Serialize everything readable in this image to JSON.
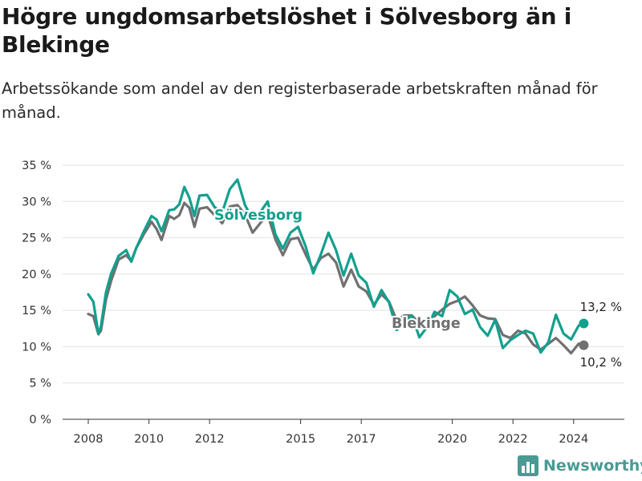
{
  "title": "Högre ungdomsarbetslöshet i Sölvesborg än i Blekinge",
  "subtitle": "Arbetssökande som andel av den registerbaserade arbetskraften månad för månad.",
  "brand": {
    "name": "Newsworthy",
    "icon": "bar-chart-logo-icon",
    "color": "#4a9a94"
  },
  "chart_data": {
    "type": "line",
    "x_ticks": [
      "2008",
      "2010",
      "2012",
      "2015",
      "2017",
      "2020",
      "2022",
      "2024"
    ],
    "y_ticks": [
      "0 %",
      "5 %",
      "10 %",
      "15 %",
      "20 %",
      "25 %",
      "30 %",
      "35 %"
    ],
    "ylim": [
      0,
      35
    ],
    "grid": true,
    "legend": "inline labels",
    "series": [
      {
        "name": "Sölvesborg",
        "color": "#12a08e",
        "end_label": "13,2 %",
        "points": [
          [
            "2008-01",
            17.2
          ],
          [
            "2008-03",
            16.2
          ],
          [
            "2008-05",
            11.8
          ],
          [
            "2008-06",
            12.8
          ],
          [
            "2008-08",
            17.5
          ],
          [
            "2008-10",
            20.0
          ],
          [
            "2009-01",
            22.5
          ],
          [
            "2009-04",
            23.3
          ],
          [
            "2009-06",
            21.7
          ],
          [
            "2009-08",
            23.6
          ],
          [
            "2009-11",
            25.9
          ],
          [
            "2010-02",
            28.0
          ],
          [
            "2010-04",
            27.5
          ],
          [
            "2010-06",
            25.9
          ],
          [
            "2010-09",
            28.8
          ],
          [
            "2010-11",
            28.9
          ],
          [
            "2011-01",
            29.6
          ],
          [
            "2011-03",
            32.0
          ],
          [
            "2011-05",
            30.5
          ],
          [
            "2011-07",
            28.0
          ],
          [
            "2011-09",
            30.8
          ],
          [
            "2011-12",
            30.9
          ],
          [
            "2012-03",
            29.2
          ],
          [
            "2012-06",
            28.5
          ],
          [
            "2012-09",
            31.7
          ],
          [
            "2012-12",
            33.0
          ],
          [
            "2013-03",
            29.5
          ],
          [
            "2013-06",
            27.5
          ],
          [
            "2013-09",
            28.5
          ],
          [
            "2013-12",
            30.0
          ],
          [
            "2014-03",
            25.5
          ],
          [
            "2014-06",
            23.5
          ],
          [
            "2014-09",
            25.7
          ],
          [
            "2014-12",
            26.5
          ],
          [
            "2015-03",
            23.8
          ],
          [
            "2015-06",
            20.1
          ],
          [
            "2015-09",
            22.7
          ],
          [
            "2015-12",
            25.7
          ],
          [
            "2016-03",
            23.3
          ],
          [
            "2016-06",
            19.8
          ],
          [
            "2016-09",
            22.8
          ],
          [
            "2016-12",
            19.8
          ],
          [
            "2017-03",
            18.8
          ],
          [
            "2017-06",
            15.5
          ],
          [
            "2017-09",
            17.8
          ],
          [
            "2017-12",
            16.1
          ],
          [
            "2018-03",
            12.3
          ],
          [
            "2018-06",
            13.4
          ],
          [
            "2018-09",
            14.3
          ],
          [
            "2018-12",
            11.3
          ],
          [
            "2019-03",
            12.7
          ],
          [
            "2019-06",
            14.8
          ],
          [
            "2019-09",
            14.2
          ],
          [
            "2019-12",
            17.8
          ],
          [
            "2020-03",
            16.9
          ],
          [
            "2020-06",
            14.5
          ],
          [
            "2020-09",
            15.1
          ],
          [
            "2020-12",
            12.7
          ],
          [
            "2021-03",
            11.5
          ],
          [
            "2021-06",
            13.7
          ],
          [
            "2021-09",
            9.8
          ],
          [
            "2021-12",
            10.9
          ],
          [
            "2022-03",
            11.6
          ],
          [
            "2022-06",
            12.2
          ],
          [
            "2022-09",
            11.8
          ],
          [
            "2022-12",
            9.2
          ],
          [
            "2023-03",
            10.6
          ],
          [
            "2023-06",
            14.4
          ],
          [
            "2023-09",
            11.8
          ],
          [
            "2023-12",
            11.0
          ],
          [
            "2024-03",
            12.9
          ],
          [
            "2024-05",
            13.2
          ]
        ]
      },
      {
        "name": "Blekinge",
        "color": "#707070",
        "end_label": "10,2 %",
        "points": [
          [
            "2008-01",
            14.5
          ],
          [
            "2008-03",
            14.2
          ],
          [
            "2008-05",
            11.7
          ],
          [
            "2008-06",
            12.2
          ],
          [
            "2008-08",
            16.5
          ],
          [
            "2008-10",
            19.0
          ],
          [
            "2009-01",
            22.0
          ],
          [
            "2009-04",
            22.6
          ],
          [
            "2009-06",
            21.8
          ],
          [
            "2009-08",
            23.6
          ],
          [
            "2009-11",
            25.5
          ],
          [
            "2010-02",
            27.2
          ],
          [
            "2010-04",
            26.2
          ],
          [
            "2010-06",
            24.7
          ],
          [
            "2010-09",
            28.0
          ],
          [
            "2010-11",
            27.6
          ],
          [
            "2011-01",
            28.1
          ],
          [
            "2011-03",
            29.8
          ],
          [
            "2011-05",
            29.1
          ],
          [
            "2011-07",
            26.5
          ],
          [
            "2011-09",
            29.0
          ],
          [
            "2011-12",
            29.2
          ],
          [
            "2012-03",
            28.1
          ],
          [
            "2012-06",
            27.0
          ],
          [
            "2012-09",
            29.3
          ],
          [
            "2012-12",
            29.5
          ],
          [
            "2013-03",
            28.2
          ],
          [
            "2013-06",
            25.7
          ],
          [
            "2013-09",
            27.0
          ],
          [
            "2013-12",
            28.2
          ],
          [
            "2014-03",
            24.8
          ],
          [
            "2014-06",
            22.6
          ],
          [
            "2014-09",
            24.8
          ],
          [
            "2014-12",
            25.0
          ],
          [
            "2015-03",
            22.7
          ],
          [
            "2015-06",
            20.6
          ],
          [
            "2015-09",
            22.2
          ],
          [
            "2015-12",
            22.8
          ],
          [
            "2016-03",
            21.6
          ],
          [
            "2016-06",
            18.3
          ],
          [
            "2016-09",
            20.6
          ],
          [
            "2016-12",
            18.3
          ],
          [
            "2017-03",
            17.6
          ],
          [
            "2017-06",
            15.8
          ],
          [
            "2017-09",
            17.2
          ],
          [
            "2017-12",
            16.2
          ],
          [
            "2018-03",
            13.6
          ],
          [
            "2018-06",
            14.3
          ],
          [
            "2018-09",
            14.3
          ],
          [
            "2018-12",
            13.2
          ],
          [
            "2019-03",
            13.9
          ],
          [
            "2019-06",
            14.2
          ],
          [
            "2019-09",
            15.1
          ],
          [
            "2019-12",
            15.9
          ],
          [
            "2020-03",
            16.3
          ],
          [
            "2020-06",
            16.9
          ],
          [
            "2020-09",
            15.7
          ],
          [
            "2020-12",
            14.3
          ],
          [
            "2021-03",
            13.9
          ],
          [
            "2021-06",
            13.8
          ],
          [
            "2021-09",
            11.6
          ],
          [
            "2021-12",
            11.2
          ],
          [
            "2022-03",
            12.2
          ],
          [
            "2022-06",
            11.8
          ],
          [
            "2022-09",
            10.3
          ],
          [
            "2022-12",
            9.6
          ],
          [
            "2023-03",
            10.4
          ],
          [
            "2023-06",
            11.2
          ],
          [
            "2023-09",
            10.2
          ],
          [
            "2023-12",
            9.1
          ],
          [
            "2024-03",
            10.4
          ],
          [
            "2024-05",
            10.2
          ]
        ]
      }
    ]
  }
}
